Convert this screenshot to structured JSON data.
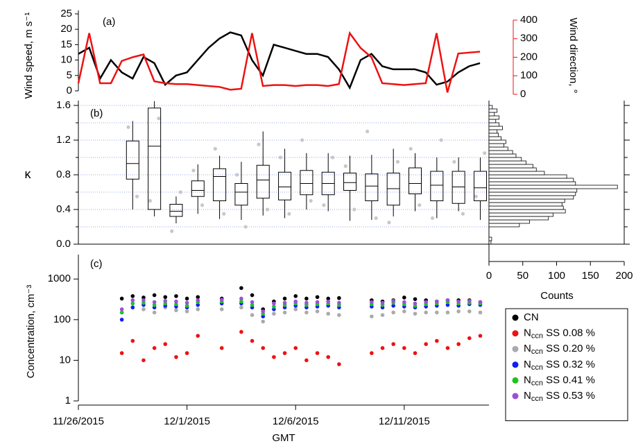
{
  "chart_data": [
    {
      "type": "line",
      "label": "(a)",
      "ylabel": "Wind speed, m s⁻¹",
      "y2label": "Wind direction, °",
      "x": [
        0,
        0.5,
        1,
        1.5,
        2,
        2.5,
        3,
        3.5,
        4,
        4.5,
        5,
        5.5,
        6,
        6.5,
        7,
        7.5,
        8,
        8.5,
        9,
        9.5,
        10,
        10.5,
        11,
        11.5,
        12,
        12.5,
        13,
        13.5,
        14,
        14.5,
        15,
        15.5,
        16,
        16.5,
        17,
        17.5,
        18,
        18.5
      ],
      "xlim": [
        0,
        20
      ],
      "ylim": [
        0,
        25
      ],
      "yticks": [
        0,
        5,
        10,
        15,
        20,
        25
      ],
      "y2lim": [
        0,
        400
      ],
      "y2ticks": [
        0,
        100,
        200,
        300,
        400
      ],
      "series": [
        {
          "color": "#000000",
          "values": [
            12,
            14,
            4,
            10,
            6,
            4,
            11,
            9,
            2,
            5,
            6,
            10,
            14,
            17,
            19,
            18,
            10,
            5,
            15,
            14,
            13,
            12,
            12,
            11,
            7,
            1,
            10,
            12,
            8,
            7,
            7,
            7,
            6,
            2,
            3,
            6,
            8,
            9
          ]
        },
        {
          "color": "#ee1111",
          "axis": "y2",
          "values": [
            60,
            330,
            60,
            60,
            180,
            200,
            215,
            70,
            60,
            55,
            55,
            50,
            45,
            40,
            25,
            30,
            330,
            45,
            50,
            50,
            45,
            50,
            50,
            45,
            55,
            330,
            250,
            200,
            60,
            55,
            50,
            55,
            60,
            330,
            10,
            220,
            225,
            230
          ]
        }
      ]
    },
    {
      "type": "box",
      "label": "(b)",
      "ylabel": "κ",
      "xlim": [
        0,
        18.9
      ],
      "ylim": [
        0,
        1.6
      ],
      "yticks": [
        {
          "value": 0,
          "label": "0.0"
        },
        0.4,
        0.8,
        1.2,
        1.6
      ],
      "minor_yticks": [
        0.2,
        0.6,
        1.0,
        1.4
      ],
      "grid": true,
      "boxes": {
        "x": [
          2.5,
          3.5,
          4.5,
          5.5,
          6.5,
          7.5,
          8.5,
          9.5,
          10.5,
          11.5,
          12.5,
          13.5,
          14.5,
          15.5,
          16.5,
          17.5,
          18.5
        ],
        "whislo": [
          0.4,
          0.32,
          0.24,
          0.35,
          0.29,
          0.28,
          0.33,
          0.3,
          0.4,
          0.38,
          0.27,
          0.28,
          0.32,
          0.38,
          0.3,
          0.38,
          0.28
        ],
        "q1": [
          0.75,
          0.4,
          0.32,
          0.55,
          0.5,
          0.45,
          0.53,
          0.51,
          0.57,
          0.57,
          0.62,
          0.5,
          0.45,
          0.58,
          0.5,
          0.47,
          0.5
        ],
        "med": [
          0.93,
          1.13,
          0.38,
          0.62,
          0.78,
          0.6,
          0.74,
          0.66,
          0.7,
          0.7,
          0.71,
          0.67,
          0.64,
          0.7,
          0.68,
          0.66,
          0.65
        ],
        "q3": [
          1.19,
          1.57,
          0.46,
          0.73,
          0.87,
          0.7,
          0.91,
          0.83,
          0.85,
          0.83,
          0.82,
          0.81,
          0.82,
          0.88,
          0.84,
          0.84,
          0.84
        ],
        "whishi": [
          1.42,
          1.65,
          0.55,
          0.92,
          1.02,
          0.95,
          1.3,
          1.1,
          1.05,
          1.05,
          1.02,
          1.03,
          1.1,
          1.05,
          1.0,
          1.0,
          1.0
        ]
      },
      "points": {
        "color": "#c8c8c8",
        "x": [
          2.3,
          2.7,
          3.3,
          3.7,
          4.3,
          4.7,
          5.3,
          5.7,
          6.3,
          6.7,
          7.3,
          7.7,
          8.3,
          8.7,
          9.3,
          9.7,
          10.3,
          10.7,
          11.3,
          11.7,
          12.3,
          12.7,
          13.3,
          13.7,
          14.3,
          14.7,
          15.3,
          15.7,
          16.3,
          16.7,
          17.3,
          17.7,
          18.3,
          18.7
        ],
        "y": [
          1.35,
          0.55,
          0.5,
          1.45,
          0.15,
          0.6,
          0.85,
          0.45,
          1.1,
          0.35,
          0.8,
          0.2,
          1.15,
          0.4,
          1.0,
          0.35,
          1.2,
          0.5,
          0.45,
          1.0,
          0.9,
          0.4,
          1.3,
          0.3,
          0.25,
          0.95,
          1.1,
          0.45,
          0.3,
          1.2,
          0.95,
          0.35,
          0.55,
          1.05
        ]
      }
    },
    {
      "type": "histogram",
      "xlabel": "Counts",
      "xlim": [
        0,
        200
      ],
      "xticks": [
        0,
        50,
        100,
        150,
        200
      ],
      "color": "#ffffff",
      "bins": [
        0,
        0.04,
        0.08,
        0.12,
        0.16,
        0.2,
        0.24,
        0.28,
        0.32,
        0.36,
        0.4,
        0.44,
        0.48,
        0.52,
        0.56,
        0.6,
        0.64,
        0.68,
        0.72,
        0.76,
        0.8,
        0.84,
        0.88,
        0.92,
        0.96,
        1.0,
        1.04,
        1.08,
        1.12,
        1.16,
        1.2,
        1.24,
        1.28,
        1.32,
        1.36,
        1.4,
        1.44,
        1.48,
        1.52,
        1.56,
        1.6
      ],
      "values": [
        3,
        4,
        0,
        0,
        0,
        45,
        60,
        88,
        95,
        113,
        110,
        108,
        112,
        125,
        128,
        130,
        190,
        128,
        125,
        115,
        82,
        70,
        65,
        55,
        48,
        40,
        35,
        28,
        22,
        25,
        18,
        14,
        12,
        20,
        15,
        10,
        15,
        8,
        12,
        5
      ]
    },
    {
      "type": "scatter",
      "label": "(c)",
      "ylabel": "Concentration, cm⁻³",
      "xlabel": "GMT",
      "log_y": true,
      "legend": "lower right",
      "xlim": [
        0,
        18.9
      ],
      "xticks": [
        {
          "value": 0,
          "label": "11/26/2015"
        },
        {
          "value": 5,
          "label": "12/1/2015"
        },
        {
          "value": 10,
          "label": "12/6/2015"
        },
        {
          "value": 15,
          "label": "12/11/2015"
        }
      ],
      "ylim": [
        1,
        4000
      ],
      "yticks": [
        1,
        10,
        100,
        1000
      ],
      "x": [
        2,
        2.5,
        3,
        3.5,
        4,
        4.5,
        5,
        5.5,
        6.6,
        7.5,
        8,
        8.5,
        9,
        9.5,
        10,
        10.5,
        11,
        11.5,
        12,
        13.5,
        14,
        14.5,
        15,
        15.5,
        16,
        16.5,
        17,
        17.5,
        18,
        18.5
      ],
      "series": [
        {
          "name": "CN",
          "color": "#000000",
          "values": [
            330,
            380,
            350,
            400,
            360,
            380,
            330,
            360,
            330,
            600,
            400,
            180,
            280,
            330,
            380,
            330,
            360,
            330,
            340,
            300,
            280,
            300,
            350,
            320,
            300,
            280,
            300,
            300,
            300,
            270
          ]
        },
        {
          "name": "Nccn SS 0.08 %",
          "color": "#ee1111",
          "values": [
            15,
            30,
            10,
            20,
            25,
            12,
            15,
            40,
            20,
            50,
            30,
            20,
            12,
            15,
            20,
            10,
            15,
            12,
            8,
            15,
            20,
            25,
            20,
            15,
            25,
            30,
            20,
            25,
            35,
            40
          ]
        },
        {
          "name": "Nccn SS 0.20 %",
          "color": "#aaaaaa",
          "values": [
            150,
            200,
            180,
            150,
            200,
            170,
            160,
            180,
            180,
            200,
            130,
            90,
            140,
            150,
            180,
            150,
            160,
            140,
            130,
            120,
            130,
            150,
            160,
            140,
            150,
            150,
            150,
            160,
            160,
            150
          ]
        },
        {
          "name": "Nccn SS 0.32 %",
          "color": "#1020ee",
          "values": [
            100,
            200,
            230,
            200,
            220,
            210,
            200,
            230,
            250,
            250,
            200,
            120,
            180,
            200,
            220,
            200,
            210,
            220,
            200,
            210,
            200,
            220,
            210,
            200,
            210,
            220,
            230,
            220,
            240,
            230
          ]
        },
        {
          "name": "Nccn SS 0.41 %",
          "color": "#1ec41e",
          "values": [
            150,
            250,
            260,
            230,
            250,
            240,
            220,
            270,
            280,
            280,
            230,
            140,
            210,
            230,
            250,
            230,
            240,
            250,
            230,
            240,
            230,
            260,
            240,
            220,
            240,
            250,
            270,
            250,
            260,
            250
          ]
        },
        {
          "name": "Nccn SS 0.53 %",
          "color": "#9b4fd6",
          "values": [
            180,
            300,
            300,
            270,
            290,
            280,
            260,
            300,
            310,
            330,
            270,
            160,
            250,
            260,
            280,
            260,
            270,
            280,
            260,
            270,
            260,
            290,
            270,
            250,
            270,
            280,
            300,
            280,
            290,
            270
          ]
        }
      ]
    }
  ]
}
